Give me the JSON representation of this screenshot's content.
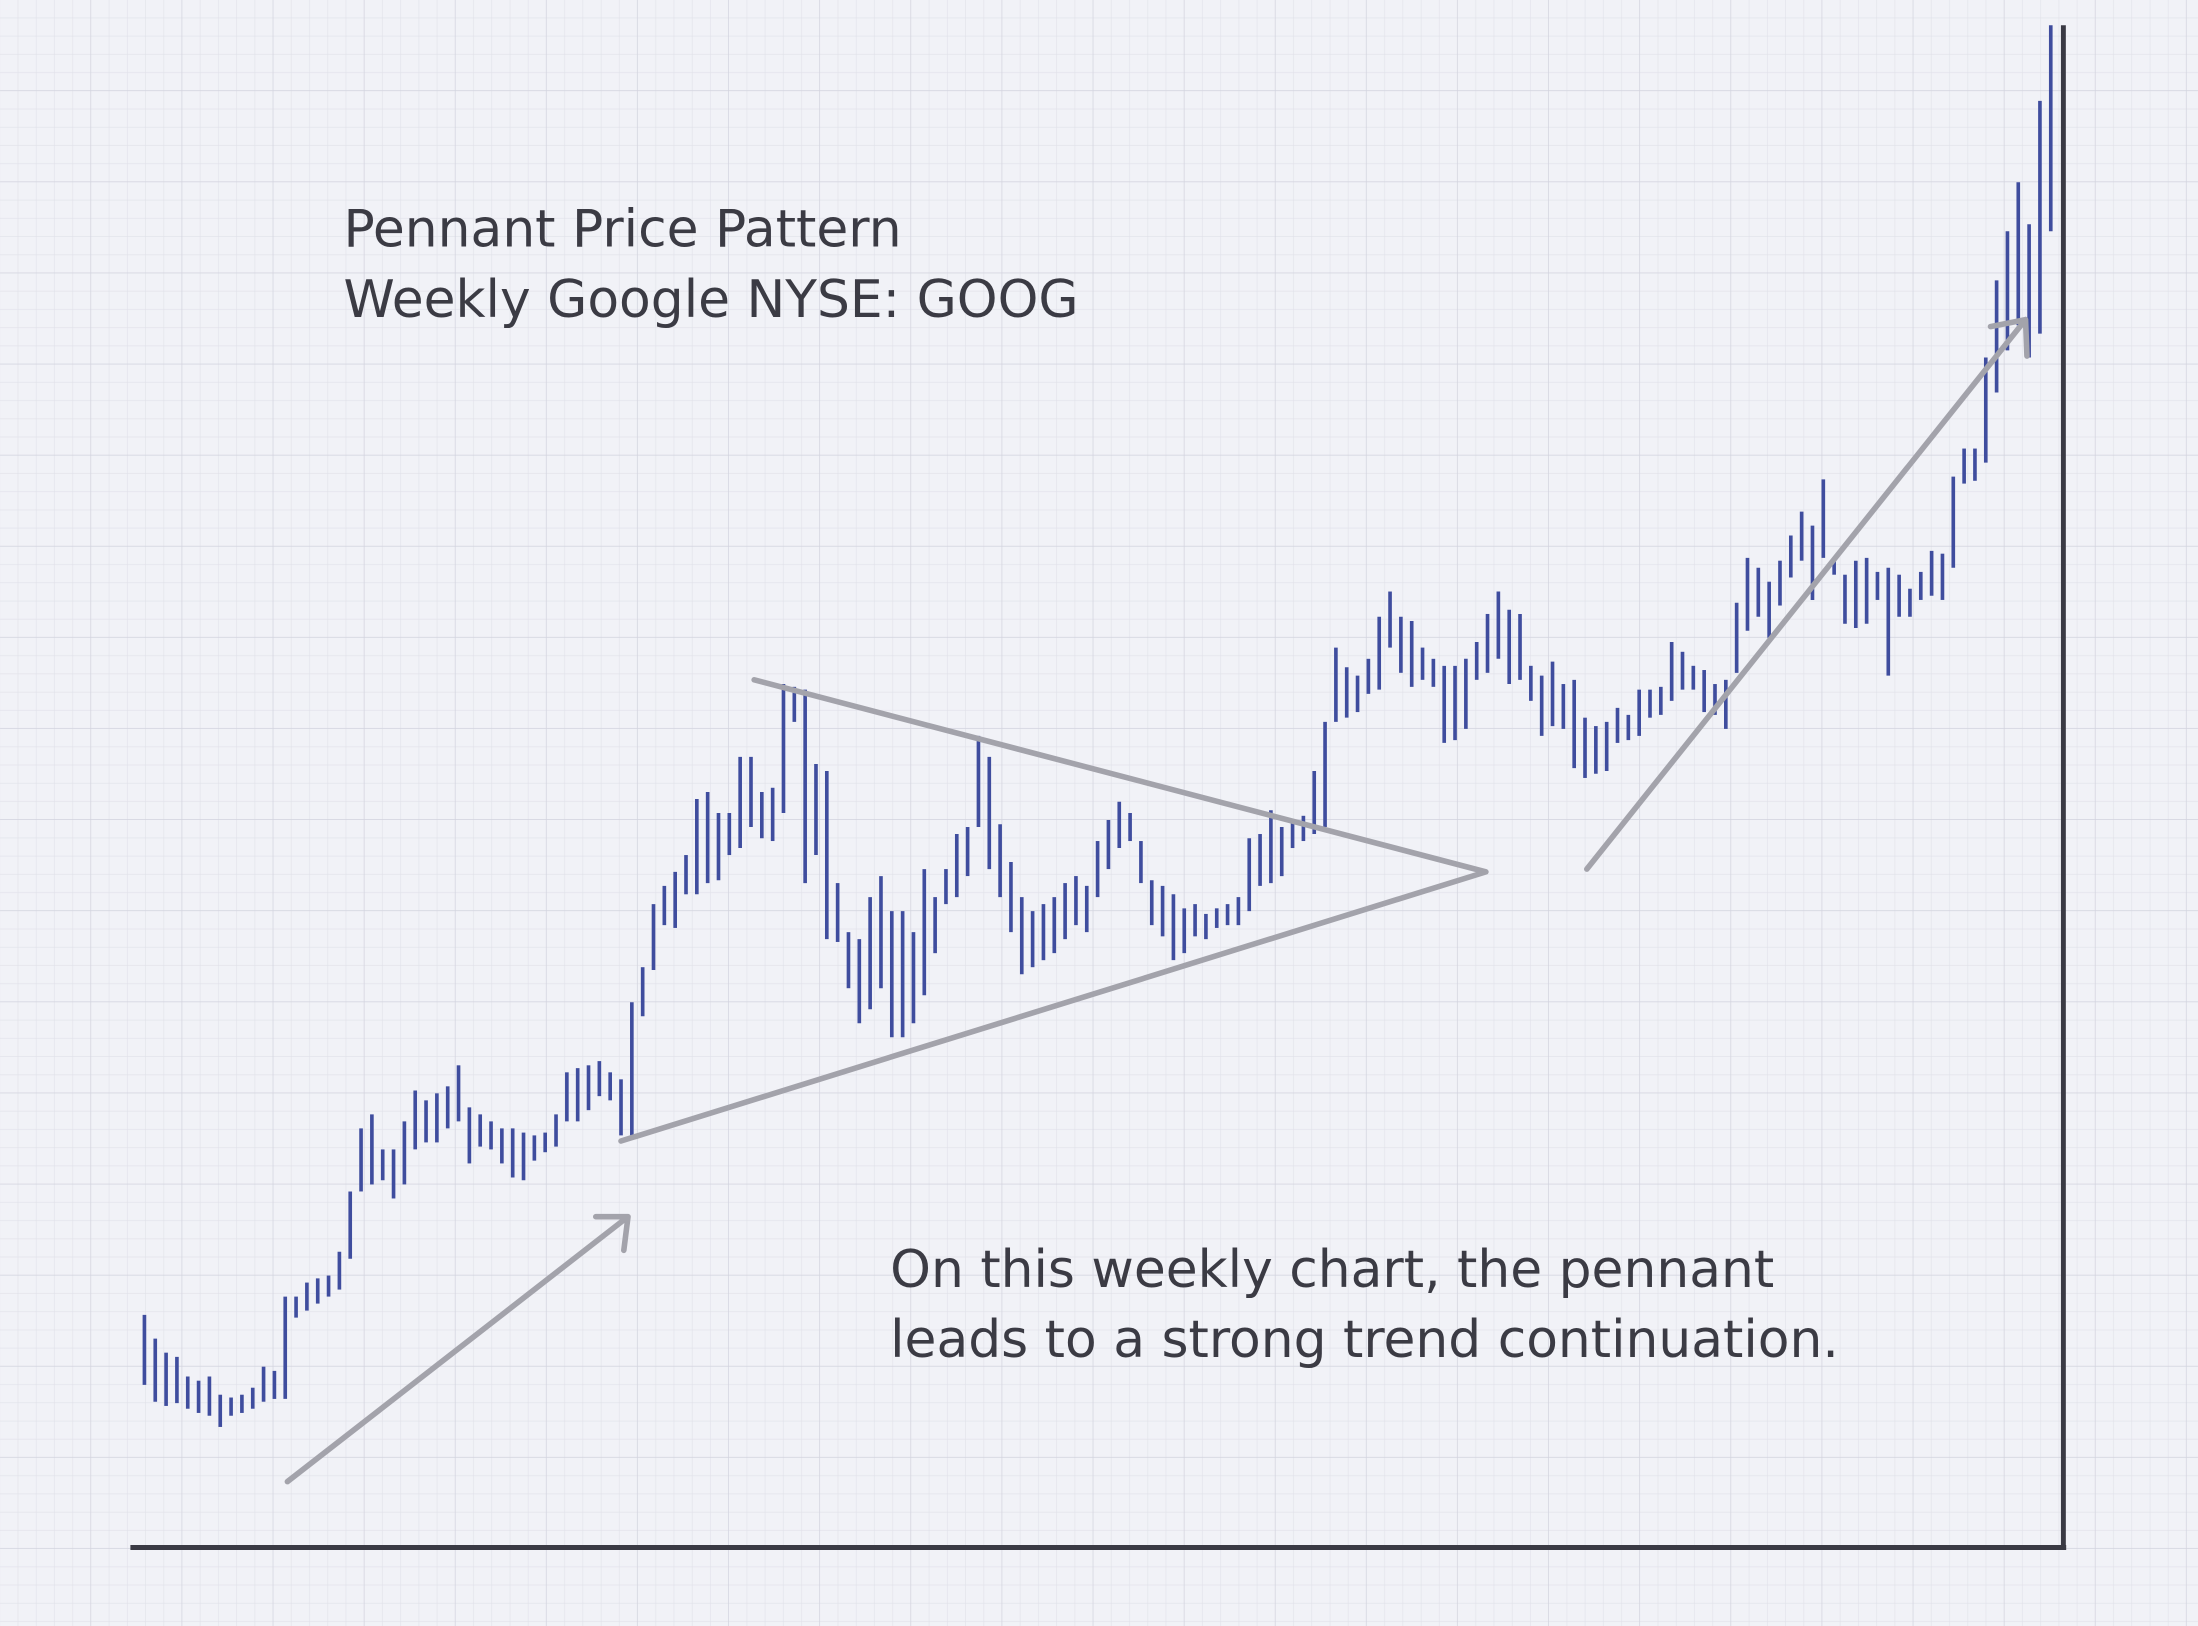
{
  "chart_data": {
    "type": "ohlc",
    "title": "Pennant Price Pattern",
    "subtitle": "Weekly Google NYSE: GOOG",
    "annotation": [
      "On this weekly chart, the pennant",
      "leads to a strong trend continuation."
    ],
    "color": "#3f4d9e",
    "ylim": [
      0,
      1086
    ],
    "grid": true,
    "high": [
      166,
      149,
      139,
      136,
      122,
      119,
      122,
      109,
      107,
      109,
      114,
      129,
      126,
      179,
      179,
      189,
      192,
      194,
      211,
      254,
      299,
      309,
      284,
      284,
      304,
      326,
      319,
      324,
      329,
      344,
      314,
      309,
      304,
      299,
      299,
      296,
      294,
      296,
      309,
      339,
      342,
      344,
      347,
      339,
      334,
      389,
      414,
      459,
      472,
      482,
      494,
      534,
      539,
      524,
      524,
      564,
      564,
      539,
      542,
      616,
      614,
      612,
      559,
      554,
      474,
      439,
      434,
      464,
      479,
      454,
      454,
      439,
      484,
      464,
      484,
      509,
      514,
      579,
      564,
      516,
      489,
      464,
      454,
      459,
      464,
      474,
      479,
      472,
      504,
      519,
      532,
      524,
      504,
      476,
      472,
      466,
      456,
      459,
      452,
      456,
      459,
      464,
      506,
      509,
      526,
      514,
      519,
      522,
      554,
      589,
      642,
      628,
      622,
      634,
      664,
      682,
      664,
      661,
      642,
      634,
      629,
      629,
      634,
      646,
      666,
      682,
      669,
      666,
      629,
      622,
      632,
      616,
      619,
      592,
      586,
      589,
      599,
      594,
      612,
      612,
      614,
      646,
      639,
      629,
      626,
      616,
      619,
      674,
      706,
      699,
      689,
      704,
      722,
      739,
      729,
      762,
      706,
      694,
      704,
      706,
      696,
      699,
      694,
      684,
      696,
      711,
      709,
      764,
      784,
      784,
      849,
      904,
      939,
      974,
      944,
      1032,
      1086
    ],
    "low": [
      116,
      104,
      101,
      103,
      99,
      96,
      94,
      86,
      94,
      96,
      99,
      104,
      106,
      106,
      164,
      169,
      174,
      179,
      184,
      206,
      254,
      259,
      262,
      249,
      259,
      284,
      289,
      289,
      299,
      304,
      274,
      286,
      284,
      274,
      264,
      262,
      276,
      282,
      286,
      304,
      304,
      312,
      322,
      319,
      294,
      294,
      379,
      412,
      444,
      442,
      466,
      466,
      474,
      476,
      494,
      499,
      514,
      506,
      504,
      524,
      589,
      474,
      494,
      434,
      432,
      399,
      374,
      384,
      399,
      364,
      364,
      374,
      394,
      424,
      459,
      464,
      479,
      514,
      484,
      464,
      439,
      409,
      414,
      419,
      424,
      434,
      444,
      439,
      464,
      484,
      499,
      504,
      474,
      444,
      436,
      419,
      424,
      436,
      434,
      442,
      444,
      444,
      454,
      472,
      474,
      479,
      499,
      504,
      509,
      514,
      589,
      592,
      596,
      609,
      612,
      642,
      624,
      614,
      619,
      614,
      574,
      576,
      584,
      619,
      624,
      634,
      616,
      619,
      604,
      579,
      586,
      584,
      556,
      549,
      552,
      554,
      574,
      576,
      579,
      592,
      594,
      604,
      612,
      612,
      596,
      594,
      584,
      624,
      654,
      664,
      649,
      672,
      692,
      704,
      676,
      706,
      694,
      659,
      656,
      659,
      676,
      622,
      664,
      664,
      676,
      679,
      676,
      699,
      759,
      761,
      774,
      824,
      854,
      872,
      849,
      866,
      939
    ]
  }
}
